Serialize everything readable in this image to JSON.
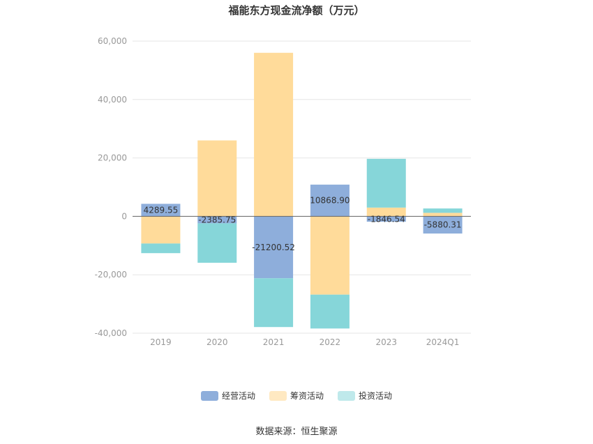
{
  "chart_data": {
    "type": "bar",
    "stacked": true,
    "title": "福能东方现金流净额（万元）",
    "source": "数据来源：恒生聚源",
    "categories": [
      "2019",
      "2020",
      "2021",
      "2022",
      "2023",
      "2024Q1"
    ],
    "ylim": [
      -40000,
      60000
    ],
    "yticks": [
      60000,
      40000,
      20000,
      0,
      -20000,
      -40000
    ],
    "ytick_labels": [
      "60,000",
      "40,000",
      "20,000",
      "0",
      "-20,000",
      "-40,000"
    ],
    "grid": true,
    "legend_position": "bottom",
    "series": [
      {
        "name": "经营活动",
        "color": "#8eaedb",
        "values": [
          4289.55,
          -2385.75,
          -21200.52,
          10868.9,
          -1846.54,
          -5880.31
        ]
      },
      {
        "name": "筹资活动",
        "color": "#ffdb9a",
        "values": [
          -9300,
          26000,
          56000,
          -26800,
          3000,
          1200
        ]
      },
      {
        "name": "投资活动",
        "color": "#86d6d9",
        "values": [
          -3300,
          -13500,
          -16700,
          -11600,
          16700,
          1500
        ]
      }
    ],
    "data_labels": [
      "4289.55",
      "-2385.75",
      "-21200.52",
      "10868.90",
      "-1846.54",
      "-5880.31"
    ]
  }
}
